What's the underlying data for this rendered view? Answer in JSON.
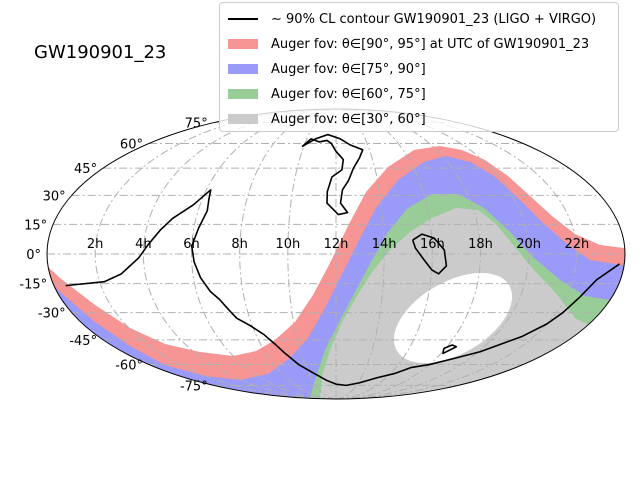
{
  "chart_data": {
    "type": "area",
    "title": "GW190901_23",
    "projection": "mollweide",
    "grid": true,
    "legend_placement": "top-right",
    "ra_tick_labels": [
      "2h",
      "4h",
      "6h",
      "8h",
      "10h",
      "12h",
      "14h",
      "16h",
      "18h",
      "20h",
      "22h"
    ],
    "dec_tick_labels": [
      "75°",
      "60°",
      "45°",
      "30°",
      "15°",
      "0°",
      "-15°",
      "-30°",
      "-45°",
      "-60°",
      "-75°"
    ],
    "ra_ticks_hours": [
      2,
      4,
      6,
      8,
      10,
      12,
      14,
      16,
      18,
      20,
      22
    ],
    "dec_ticks_deg": [
      75,
      60,
      45,
      30,
      15,
      0,
      -15,
      -30,
      -45,
      -60,
      -75
    ],
    "colors": {
      "contour": "#000000",
      "fov_90_95": "#f79494",
      "fov_75_90": "#9a9af8",
      "fov_60_75": "#98cd98",
      "fov_30_60": "#cbcbcb",
      "grid": "#b0b0b0"
    },
    "series": [
      {
        "name": "~ 90% CL contour GW190901_23 (LIGO + VIRGO)",
        "label_pre": "~ 90% CL contour GW190901_23 (LIGO + VIRGO)"
      },
      {
        "name": "Auger fov: θ∈[90°, 95°] at UTC of GW190901_23",
        "zenith_range_deg": [
          90,
          95
        ]
      },
      {
        "name": "Auger fov: θ∈[75°, 90°]",
        "zenith_range_deg": [
          75,
          90
        ]
      },
      {
        "name": "Auger fov: θ∈[60°, 75°]",
        "zenith_range_deg": [
          60,
          75
        ]
      },
      {
        "name": "Auger fov: θ∈[30°, 60°]",
        "zenith_range_deg": [
          30,
          60
        ]
      }
    ],
    "contour_hours_dec": [
      [
        [
          0.5,
          -16
        ],
        [
          2.2,
          -14
        ],
        [
          3.0,
          -10
        ],
        [
          3.8,
          -2
        ],
        [
          4.2,
          5
        ],
        [
          4.6,
          12
        ],
        [
          5.0,
          18
        ],
        [
          5.7,
          25
        ],
        [
          6.2,
          33
        ],
        [
          6.3,
          28
        ],
        [
          6.4,
          22
        ],
        [
          6.2,
          13
        ],
        [
          6.0,
          4
        ],
        [
          6.1,
          -4
        ],
        [
          6.3,
          -12
        ],
        [
          6.6,
          -19
        ],
        [
          6.9,
          -23
        ],
        [
          7.2,
          -29
        ],
        [
          7.4,
          -33
        ],
        [
          7.9,
          -37
        ],
        [
          8.4,
          -42
        ],
        [
          8.8,
          -48
        ],
        [
          9.1,
          -53
        ],
        [
          9.6,
          -60
        ],
        [
          10.4,
          -66
        ],
        [
          11.2,
          -71
        ],
        [
          12.0,
          -74
        ],
        [
          13.0,
          -75
        ],
        [
          14.1,
          -73
        ],
        [
          15.3,
          -69
        ],
        [
          16.3,
          -66
        ],
        [
          17.0,
          -62
        ],
        [
          18.0,
          -60
        ],
        [
          19.1,
          -56
        ],
        [
          20.1,
          -52
        ],
        [
          21.4,
          -43
        ],
        [
          22.0,
          -36
        ],
        [
          22.3,
          -30
        ],
        [
          22.6,
          -22
        ],
        [
          23.0,
          -13
        ],
        [
          23.8,
          -5
        ]
      ],
      [
        [
          9.9,
          58
        ],
        [
          10.3,
          63
        ],
        [
          10.9,
          61
        ],
        [
          11.4,
          62
        ],
        [
          11.7,
          60
        ],
        [
          12.0,
          55
        ],
        [
          12.4,
          50
        ],
        [
          12.3,
          44
        ],
        [
          11.8,
          40
        ],
        [
          11.6,
          32
        ],
        [
          11.6,
          26
        ],
        [
          12.1,
          20
        ],
        [
          12.5,
          21
        ],
        [
          12.2,
          26
        ],
        [
          12.3,
          33
        ],
        [
          12.6,
          38
        ],
        [
          12.9,
          45
        ],
        [
          13.3,
          51
        ],
        [
          13.6,
          56
        ],
        [
          12.9,
          59
        ],
        [
          12.3,
          63
        ],
        [
          11.4,
          66
        ],
        [
          10.6,
          63
        ],
        [
          9.9,
          58
        ]
      ],
      [
        [
          15.2,
          7
        ],
        [
          15.6,
          10
        ],
        [
          16.1,
          8
        ],
        [
          16.5,
          2
        ],
        [
          16.6,
          -6
        ],
        [
          16.3,
          -10
        ],
        [
          16.0,
          -8
        ],
        [
          15.6,
          -2
        ],
        [
          15.3,
          3
        ],
        [
          15.2,
          7
        ]
      ],
      [
        [
          17.9,
          -50
        ],
        [
          18.2,
          -48
        ],
        [
          18.5,
          -49
        ],
        [
          18.1,
          -53
        ],
        [
          17.9,
          -50
        ]
      ]
    ]
  },
  "legend": {
    "contour_label": "∼ 90% CL contour GW190901_23 (LIGO + VIRGO)",
    "fov1_label": "Auger fov: θ∈[90°, 95°] at UTC of GW190901_23",
    "fov2_label": "Auger fov: θ∈[75°, 90°]",
    "fov3_label": "Auger fov: θ∈[60°, 75°]",
    "fov4_label": "Auger fov: θ∈[30°, 60°]"
  }
}
